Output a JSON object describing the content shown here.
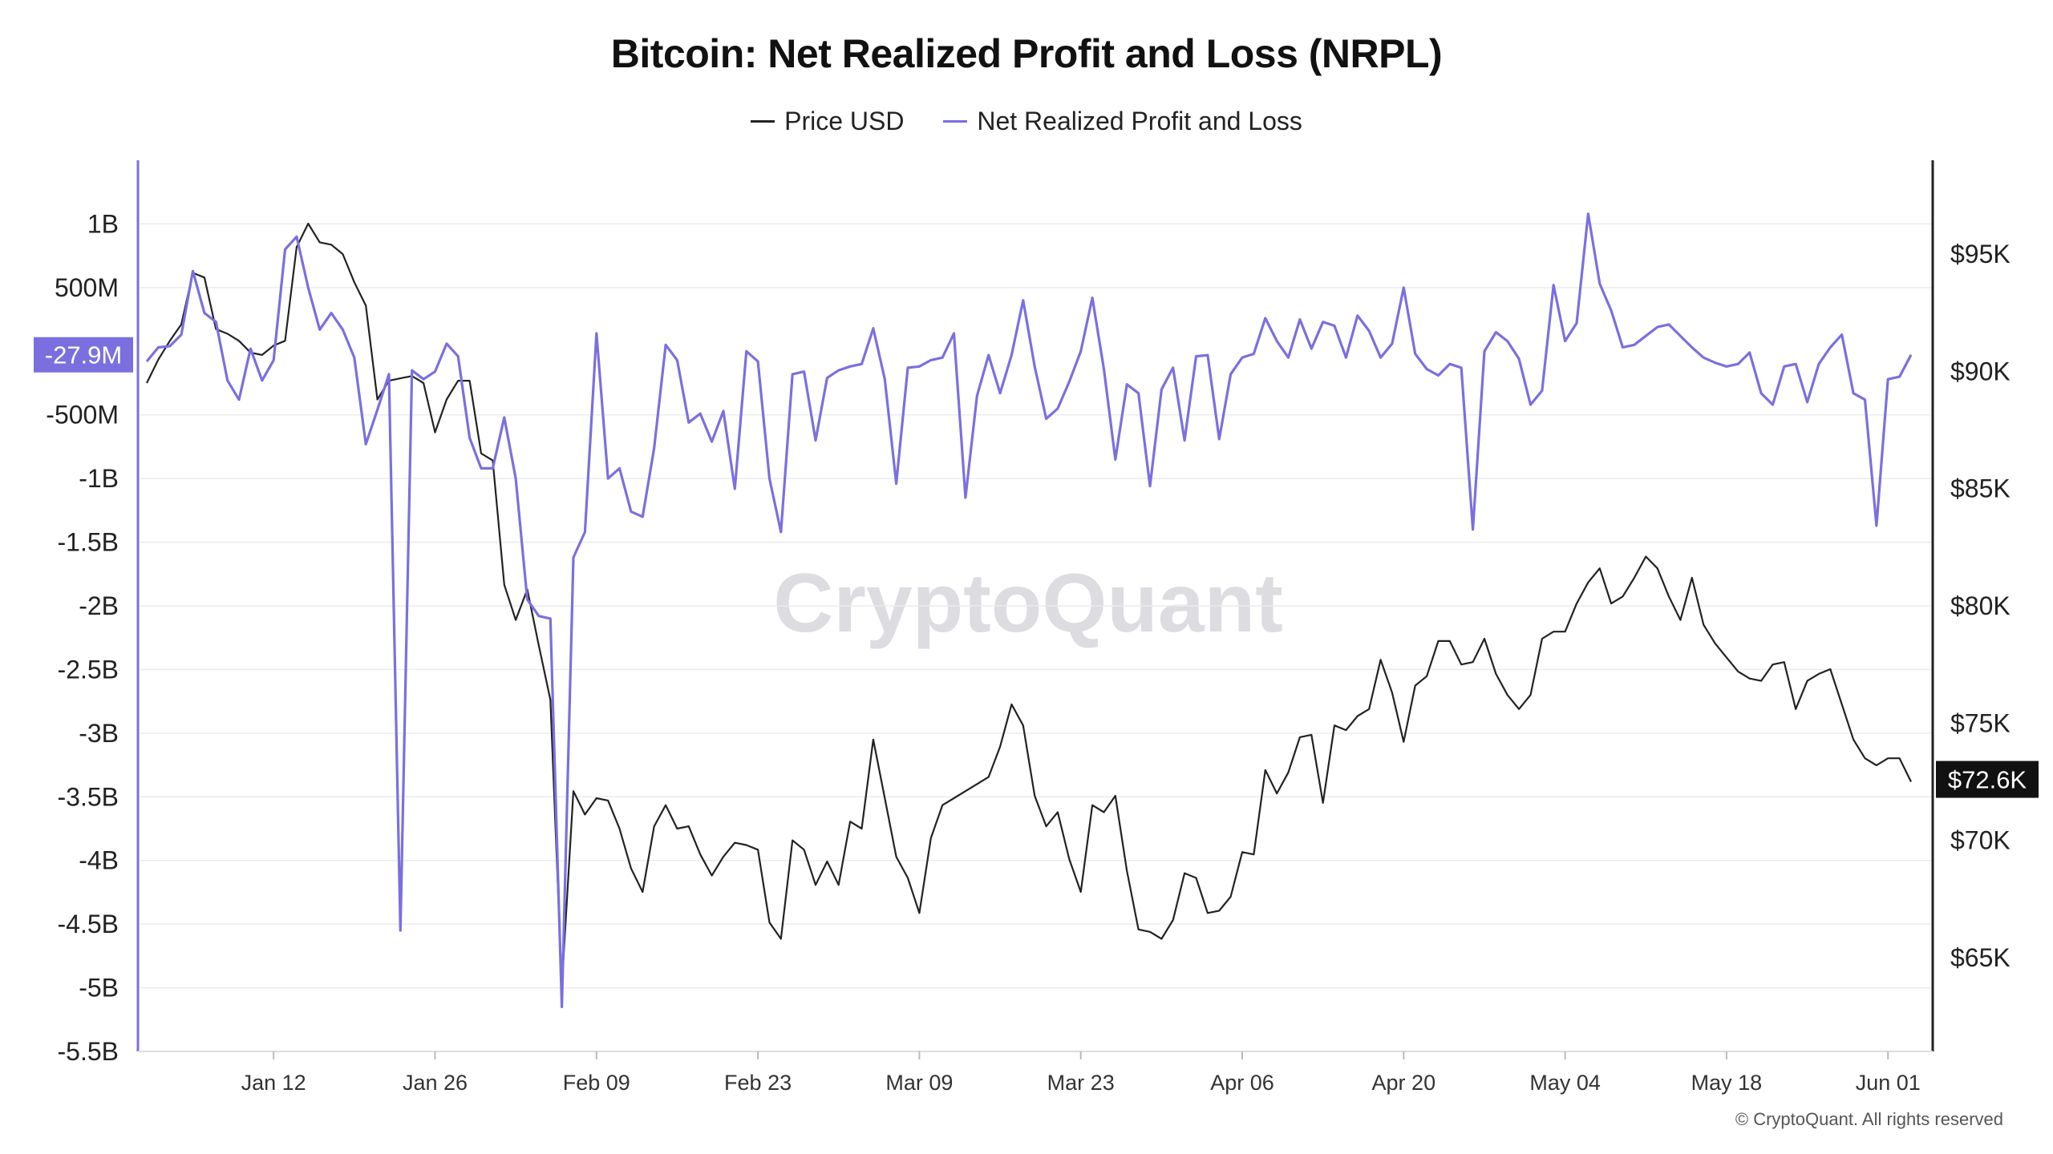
{
  "title": "Bitcoin: Net Realized Profit and Loss (NRPL)",
  "watermark": "CryptoQuant",
  "copyright": "© CryptoQuant. All rights reserved",
  "legend": [
    {
      "label": "Price USD",
      "color": "#222222"
    },
    {
      "label": "Net Realized Profit and Loss",
      "color": "#7b6fe0"
    }
  ],
  "chart_data": {
    "type": "line",
    "x_start": "2025-01-01",
    "x_tick_labels": [
      "Jan 12",
      "Jan 26",
      "Feb 09",
      "Feb 23",
      "Mar 09",
      "Mar 23",
      "Apr 06",
      "Apr 20",
      "May 04",
      "May 18",
      "Jun 01"
    ],
    "x_tick_dates": [
      "2025-01-12",
      "2025-01-26",
      "2025-02-09",
      "2025-02-23",
      "2025-03-09",
      "2025-03-23",
      "2025-04-06",
      "2025-04-20",
      "2025-05-04",
      "2025-05-18",
      "2025-06-01"
    ],
    "left_axis": {
      "ticks": [
        1000000000,
        500000000,
        -500000000,
        -1000000000,
        -1500000000,
        -2000000000,
        -2500000000,
        -3000000000,
        -3500000000,
        -4000000000,
        -4500000000,
        -5000000000,
        -5500000000
      ],
      "tick_labels": [
        "1B",
        "500M",
        "-500M",
        "-1B",
        "-1.5B",
        "-2B",
        "-2.5B",
        "-3B",
        "-3.5B",
        "-4B",
        "-4.5B",
        "-5B",
        "-5.5B"
      ],
      "ylim": [
        -5500000000,
        1500000000
      ],
      "current_label": "-27.9M",
      "current_value": -27900000,
      "color": "#7b6fe0"
    },
    "right_axis": {
      "ticks": [
        95000,
        90000,
        85000,
        80000,
        75000,
        70000,
        65000
      ],
      "tick_labels": [
        "$95K",
        "$90K",
        "$85K",
        "$80K",
        "$75K",
        "$70K",
        "$65K"
      ],
      "ylim": [
        61000,
        99000
      ],
      "current_label": "$72.6K",
      "current_value": 72600
    },
    "grid": "horizontal",
    "legend_position": "top-center",
    "series": [
      {
        "name": "Price USD",
        "axis": "right",
        "color": "#222222",
        "values": [
          89500,
          90500,
          91300,
          92000,
          94200,
          94000,
          91800,
          91600,
          91300,
          90800,
          90700,
          91100,
          91300,
          95300,
          96300,
          95500,
          95400,
          95000,
          93800,
          92800,
          88800,
          89600,
          89700,
          89800,
          89500,
          87400,
          88800,
          89600,
          89600,
          86500,
          86200,
          80900,
          79400,
          80700,
          78300,
          76000,
          63800,
          72100,
          71100,
          71800,
          71700,
          70500,
          68800,
          67800,
          70600,
          71500,
          70500,
          70600,
          69400,
          68500,
          69300,
          69900,
          69800,
          69600,
          66500,
          65800,
          70000,
          69600,
          68100,
          69100,
          68100,
          70800,
          70500,
          74300,
          71800,
          69300,
          68400,
          66900,
          70100,
          71500,
          71800,
          72100,
          72400,
          72700,
          74000,
          75800,
          74900,
          71900,
          70600,
          71200,
          69200,
          67800,
          71500,
          71200,
          71900,
          68700,
          66200,
          66100,
          65800,
          66600,
          68600,
          68400,
          66900,
          67000,
          67600,
          69500,
          69400,
          73000,
          72000,
          72900,
          74400,
          74500,
          71600,
          74900,
          74700,
          75300,
          75600,
          77700,
          76300,
          74200,
          76600,
          77000,
          78500,
          78500,
          77500,
          77600,
          78600,
          77100,
          76200,
          75600,
          76200,
          78600,
          78900,
          78900,
          80100,
          81000,
          81600,
          80100,
          80400,
          81200,
          82100,
          81600,
          80400,
          79400,
          81200,
          79200,
          78400,
          77800,
          77200,
          76900,
          76800,
          77500,
          77600,
          75600,
          76800,
          77100,
          77300,
          75800,
          74300,
          73500,
          73200,
          73500,
          73500,
          72500
        ]
      },
      {
        "name": "Net Realized Profit and Loss",
        "axis": "left",
        "color": "#7b6fe0",
        "values": [
          -80000000,
          30000000,
          40000000,
          130000000,
          630000000,
          300000000,
          230000000,
          -230000000,
          -380000000,
          20000000,
          -230000000,
          -70000000,
          800000000,
          900000000,
          500000000,
          170000000,
          300000000,
          170000000,
          -50000000,
          -730000000,
          -460000000,
          -180000000,
          -4550000000,
          -150000000,
          -220000000,
          -160000000,
          60000000,
          -40000000,
          -680000000,
          -920000000,
          -920000000,
          -520000000,
          -1000000000,
          -1950000000,
          -2080000000,
          -2100000000,
          -5150000000,
          -1620000000,
          -1420000000,
          140000000,
          -1000000000,
          -920000000,
          -1260000000,
          -1300000000,
          -760000000,
          50000000,
          -70000000,
          -560000000,
          -490000000,
          -710000000,
          -470000000,
          -1080000000,
          0,
          -80000000,
          -1000000000,
          -1420000000,
          -180000000,
          -160000000,
          -700000000,
          -210000000,
          -150000000,
          -120000000,
          -100000000,
          180000000,
          -220000000,
          -1040000000,
          -130000000,
          -120000000,
          -70000000,
          -50000000,
          140000000,
          -1150000000,
          -350000000,
          -30000000,
          -330000000,
          -30000000,
          400000000,
          -120000000,
          -530000000,
          -450000000,
          -240000000,
          0,
          420000000,
          -140000000,
          -850000000,
          -260000000,
          -330000000,
          -1060000000,
          -300000000,
          -130000000,
          -700000000,
          -40000000,
          -30000000,
          -690000000,
          -180000000,
          -50000000,
          -20000000,
          260000000,
          80000000,
          -50000000,
          250000000,
          20000000,
          230000000,
          200000000,
          -50000000,
          280000000,
          160000000,
          -50000000,
          60000000,
          500000000,
          -20000000,
          -140000000,
          -190000000,
          -100000000,
          -130000000,
          -1400000000,
          0,
          150000000,
          80000000,
          -60000000,
          -420000000,
          -310000000,
          520000000,
          80000000,
          220000000,
          1080000000,
          530000000,
          320000000,
          30000000,
          50000000,
          120000000,
          190000000,
          210000000,
          120000000,
          30000000,
          -50000000,
          -90000000,
          -120000000,
          -100000000,
          -10000000,
          -330000000,
          -420000000,
          -120000000,
          -100000000,
          -400000000,
          -100000000,
          30000000,
          130000000,
          -330000000,
          -380000000,
          -1370000000,
          -220000000,
          -200000000,
          -27900000
        ]
      }
    ]
  }
}
